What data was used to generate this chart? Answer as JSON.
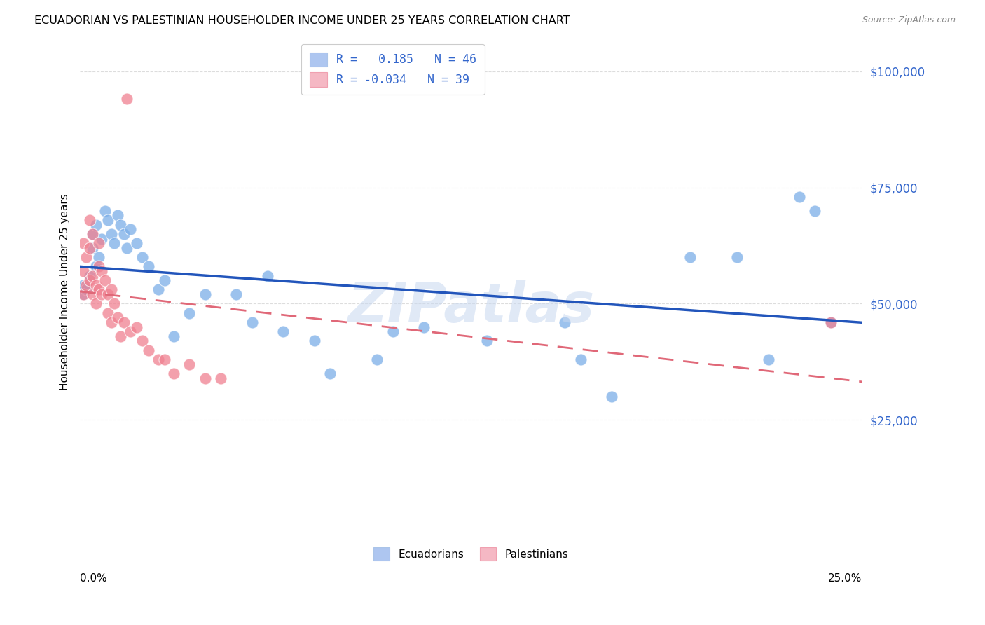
{
  "title": "ECUADORIAN VS PALESTINIAN HOUSEHOLDER INCOME UNDER 25 YEARS CORRELATION CHART",
  "source": "Source: ZipAtlas.com",
  "ylabel": "Householder Income Under 25 years",
  "xmin": 0.0,
  "xmax": 0.25,
  "ymin": 0,
  "ymax": 105000,
  "legend_entries": [
    {
      "label": "R =   0.185   N = 46",
      "color": "#aec6f0"
    },
    {
      "label": "R = -0.034   N = 39",
      "color": "#f5b8c4"
    }
  ],
  "ecuadorians_x": [
    0.001,
    0.001,
    0.002,
    0.003,
    0.004,
    0.004,
    0.005,
    0.005,
    0.006,
    0.007,
    0.008,
    0.009,
    0.01,
    0.011,
    0.012,
    0.013,
    0.014,
    0.015,
    0.016,
    0.018,
    0.02,
    0.022,
    0.025,
    0.027,
    0.03,
    0.035,
    0.04,
    0.05,
    0.055,
    0.06,
    0.065,
    0.075,
    0.08,
    0.095,
    0.1,
    0.11,
    0.13,
    0.155,
    0.16,
    0.17,
    0.195,
    0.21,
    0.22,
    0.23,
    0.235,
    0.24
  ],
  "ecuadorians_y": [
    52000,
    54000,
    53000,
    56000,
    62000,
    65000,
    58000,
    67000,
    60000,
    64000,
    70000,
    68000,
    65000,
    63000,
    69000,
    67000,
    65000,
    62000,
    66000,
    63000,
    60000,
    58000,
    53000,
    55000,
    43000,
    48000,
    52000,
    52000,
    46000,
    56000,
    44000,
    42000,
    35000,
    38000,
    44000,
    45000,
    42000,
    46000,
    38000,
    30000,
    60000,
    60000,
    38000,
    73000,
    70000,
    46000
  ],
  "palestinians_x": [
    0.001,
    0.001,
    0.001,
    0.002,
    0.002,
    0.003,
    0.003,
    0.003,
    0.004,
    0.004,
    0.004,
    0.005,
    0.005,
    0.006,
    0.006,
    0.006,
    0.007,
    0.007,
    0.008,
    0.009,
    0.009,
    0.01,
    0.01,
    0.011,
    0.012,
    0.013,
    0.014,
    0.016,
    0.018,
    0.02,
    0.022,
    0.025,
    0.027,
    0.03,
    0.035,
    0.04,
    0.045,
    0.24,
    0.015
  ],
  "palestinians_y": [
    52000,
    57000,
    63000,
    54000,
    60000,
    55000,
    62000,
    68000,
    52000,
    56000,
    65000,
    50000,
    54000,
    53000,
    58000,
    63000,
    52000,
    57000,
    55000,
    52000,
    48000,
    53000,
    46000,
    50000,
    47000,
    43000,
    46000,
    44000,
    45000,
    42000,
    40000,
    38000,
    38000,
    35000,
    37000,
    34000,
    34000,
    46000,
    94000
  ],
  "ecu_color": "#7baee8",
  "pal_color": "#f08090",
  "ecu_line_color": "#2255bb",
  "pal_line_color": "#e06878",
  "watermark": "ZIPatlas",
  "background_color": "#ffffff",
  "grid_color": "#dddddd"
}
